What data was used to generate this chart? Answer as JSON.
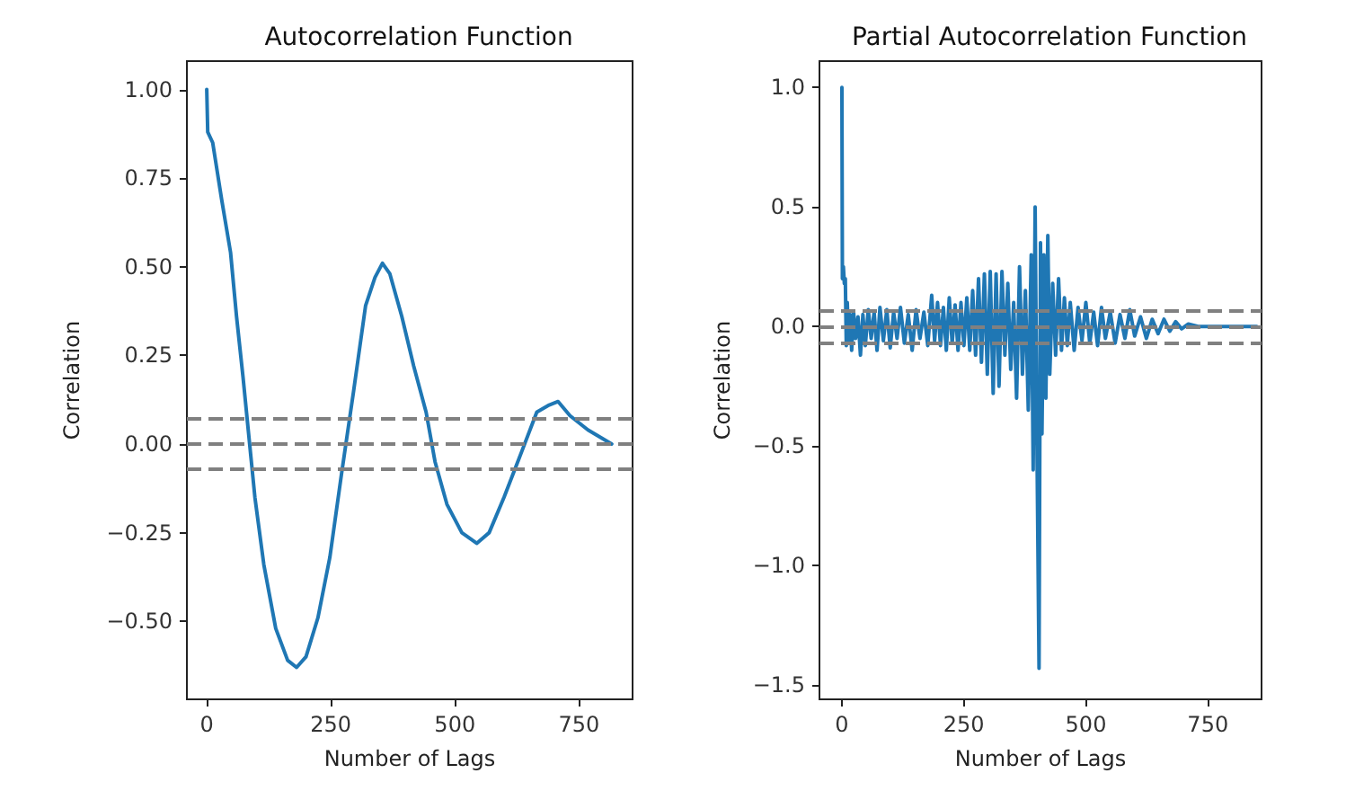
{
  "chart_data": [
    {
      "type": "line",
      "title": "Autocorrelation Function",
      "xlabel": "Number of Lags",
      "ylabel": "Correlation",
      "grid": false,
      "marker": "none",
      "line_style": "solid",
      "xlim": [
        -40,
        858
      ],
      "ylim": [
        -0.72,
        1.08
      ],
      "xticks": [
        0,
        250,
        500,
        750
      ],
      "yticks": [
        {
          "value": -0.5,
          "label": "−0.50"
        },
        {
          "value": -0.25,
          "label": "−0.25"
        },
        {
          "value": 0,
          "label": "0.00"
        },
        {
          "value": 0.25,
          "label": "0.25"
        },
        {
          "value": 0.5,
          "label": "0.50"
        },
        {
          "value": 0.75,
          "label": "0.75"
        },
        {
          "value": 1.0,
          "label": "1.00"
        }
      ],
      "series": [
        {
          "color": "#1f77b4",
          "x": [
            0,
            2,
            12,
            30,
            48,
            60,
            73,
            85,
            97,
            115,
            139,
            163,
            181,
            200,
            224,
            248,
            272,
            296,
            320,
            339,
            354,
            369,
            393,
            417,
            442,
            460,
            484,
            514,
            544,
            569,
            599,
            635,
            665,
            690,
            708,
            732,
            768,
            816
          ],
          "values": [
            1.0,
            0.88,
            0.85,
            0.69,
            0.54,
            0.36,
            0.19,
            0.02,
            -0.15,
            -0.34,
            -0.52,
            -0.61,
            -0.63,
            -0.6,
            -0.49,
            -0.32,
            -0.08,
            0.15,
            0.39,
            0.47,
            0.51,
            0.48,
            0.36,
            0.22,
            0.09,
            -0.05,
            -0.17,
            -0.25,
            -0.28,
            -0.25,
            -0.15,
            -0.02,
            0.09,
            0.11,
            0.12,
            0.08,
            0.04,
            0.0
          ]
        }
      ],
      "ref_lines": [
        {
          "axis": "y",
          "value": 0.07,
          "color": "#808080",
          "line_style": "dashed"
        },
        {
          "axis": "y",
          "value": 0,
          "color": "#808080",
          "line_style": "dashed"
        },
        {
          "axis": "y",
          "value": -0.07,
          "color": "#808080",
          "line_style": "dashed"
        }
      ]
    },
    {
      "type": "line",
      "title": "Partial Autocorrelation Function",
      "xlabel": "Number of Lags",
      "ylabel": "Correlation",
      "grid": false,
      "marker": "none",
      "line_style": "solid",
      "xlim": [
        -46,
        860
      ],
      "ylim": [
        -1.56,
        1.11
      ],
      "xticks": [
        0,
        250,
        500,
        750
      ],
      "yticks": [
        {
          "value": -1.5,
          "label": "−1.5"
        },
        {
          "value": -1.0,
          "label": "−1.0"
        },
        {
          "value": -0.5,
          "label": "−0.5"
        },
        {
          "value": 0,
          "label": "0.0"
        },
        {
          "value": 0.5,
          "label": "0.5"
        },
        {
          "value": 1.0,
          "label": "1.0"
        }
      ],
      "series": [
        {
          "color": "#1f77b4",
          "x": [
            0,
            1,
            3,
            5,
            7,
            9,
            11,
            14,
            17,
            20,
            24,
            28,
            33,
            38,
            43,
            48,
            54,
            60,
            66,
            72,
            78,
            85,
            92,
            99,
            106,
            113,
            120,
            128,
            136,
            144,
            152,
            160,
            168,
            176,
            184,
            190,
            196,
            202,
            208,
            214,
            220,
            226,
            232,
            238,
            244,
            250,
            256,
            262,
            268,
            274,
            280,
            286,
            292,
            298,
            304,
            310,
            316,
            322,
            328,
            334,
            340,
            346,
            352,
            358,
            364,
            370,
            376,
            382,
            388,
            392,
            396,
            400,
            404,
            407,
            410,
            414,
            418,
            422,
            426,
            432,
            438,
            444,
            450,
            456,
            462,
            468,
            476,
            484,
            492,
            500,
            508,
            516,
            524,
            532,
            540,
            550,
            560,
            570,
            580,
            590,
            600,
            612,
            624,
            636,
            648,
            660,
            672,
            684,
            696,
            710,
            730,
            760,
            800,
            850
          ],
          "values": [
            1.0,
            0.2,
            0.25,
            0.18,
            0.2,
            -0.08,
            0.1,
            -0.06,
            0.05,
            -0.1,
            0.06,
            -0.05,
            0.04,
            -0.12,
            0.05,
            -0.08,
            0.07,
            -0.05,
            0.06,
            -0.1,
            0.08,
            -0.06,
            0.07,
            -0.09,
            0.06,
            -0.05,
            0.08,
            -0.07,
            0.05,
            -0.1,
            0.07,
            -0.05,
            0.06,
            -0.08,
            0.13,
            -0.06,
            0.1,
            -0.08,
            0.08,
            -0.1,
            0.12,
            -0.07,
            0.09,
            -0.1,
            0.1,
            -0.08,
            0.12,
            -0.1,
            0.15,
            -0.12,
            0.2,
            -0.15,
            0.22,
            -0.2,
            0.23,
            -0.28,
            0.22,
            -0.25,
            0.23,
            -0.12,
            0.18,
            -0.18,
            0.1,
            -0.3,
            0.25,
            -0.2,
            0.15,
            -0.35,
            0.3,
            -0.6,
            0.5,
            -0.55,
            -1.43,
            0.35,
            -0.45,
            0.3,
            -0.3,
            0.38,
            -0.2,
            0.18,
            -0.12,
            0.2,
            -0.1,
            0.12,
            -0.08,
            0.1,
            -0.1,
            0.08,
            -0.06,
            0.1,
            -0.07,
            0.06,
            -0.08,
            0.08,
            -0.05,
            0.06,
            -0.07,
            0.05,
            -0.05,
            0.07,
            -0.04,
            0.04,
            -0.05,
            0.03,
            -0.03,
            0.03,
            -0.02,
            0.02,
            -0.01,
            0.01,
            0,
            0,
            0,
            0
          ]
        }
      ],
      "ref_lines": [
        {
          "axis": "y",
          "value": 0.075,
          "color": "#808080",
          "line_style": "dashed"
        },
        {
          "axis": "y",
          "value": 0,
          "color": "#808080",
          "line_style": "dashed"
        },
        {
          "axis": "y",
          "value": -0.075,
          "color": "#808080",
          "line_style": "dashed"
        }
      ]
    }
  ]
}
